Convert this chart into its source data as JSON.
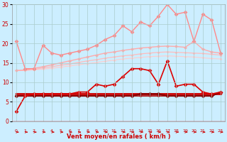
{
  "xlabel": "Vent moyen/en rafales ( km/h )",
  "xlim": [
    -0.5,
    23.5
  ],
  "ylim": [
    0,
    30
  ],
  "yticks": [
    0,
    5,
    10,
    15,
    20,
    25,
    30
  ],
  "xticks": [
    0,
    1,
    2,
    3,
    4,
    5,
    6,
    7,
    8,
    9,
    10,
    11,
    12,
    13,
    14,
    15,
    16,
    17,
    18,
    19,
    20,
    21,
    22,
    23
  ],
  "bg_color": "#cceeff",
  "grid_color": "#aacccc",
  "pink_jagged": {
    "y": [
      20.5,
      13.5,
      13.5,
      19.5,
      17.5,
      17.0,
      17.5,
      18.0,
      18.5,
      19.5,
      21.0,
      22.0,
      24.5,
      23.0,
      25.5,
      24.5,
      27.0,
      30.0,
      27.5,
      28.0,
      20.5,
      27.5,
      26.0,
      17.5
    ],
    "color": "#ff8888",
    "lw": 1.0,
    "ms": 3.0
  },
  "pink_smooth1": {
    "y": [
      13.0,
      13.2,
      13.6,
      14.0,
      14.5,
      15.0,
      15.5,
      16.0,
      16.5,
      17.0,
      17.5,
      17.8,
      18.2,
      18.5,
      18.8,
      19.0,
      19.2,
      19.3,
      19.2,
      19.0,
      20.5,
      18.5,
      17.8,
      17.5
    ],
    "color": "#ffaaaa",
    "lw": 1.0,
    "ms": 2.5
  },
  "pink_smooth2": {
    "y": [
      13.0,
      13.1,
      13.3,
      13.7,
      14.0,
      14.4,
      14.7,
      15.1,
      15.5,
      15.8,
      16.2,
      16.5,
      16.8,
      17.0,
      17.3,
      17.5,
      17.7,
      17.8,
      17.7,
      17.6,
      17.5,
      17.4,
      17.2,
      17.0
    ],
    "color": "#ffbbbb",
    "lw": 0.9,
    "ms": 2.0
  },
  "pink_smooth3": {
    "y": [
      13.0,
      13.05,
      13.2,
      13.4,
      13.6,
      13.9,
      14.2,
      14.5,
      14.8,
      15.1,
      15.4,
      15.7,
      16.0,
      16.2,
      16.4,
      16.6,
      16.7,
      16.8,
      16.7,
      16.6,
      16.5,
      16.3,
      16.1,
      16.0
    ],
    "color": "#ffcccc",
    "lw": 0.8,
    "ms": 2.0
  },
  "red_jagged": {
    "y": [
      2.5,
      6.5,
      7.0,
      7.0,
      7.0,
      7.0,
      7.0,
      7.5,
      7.5,
      9.5,
      9.0,
      9.5,
      11.5,
      13.5,
      13.5,
      13.0,
      9.5,
      15.5,
      9.0,
      9.5,
      9.5,
      7.5,
      7.0,
      7.5
    ],
    "color": "#dd0000",
    "lw": 1.2,
    "ms": 3.0
  },
  "red_flat1": {
    "y": [
      7.0,
      7.0,
      7.0,
      7.0,
      7.0,
      7.0,
      7.0,
      7.0,
      7.0,
      7.0,
      7.0,
      7.0,
      7.0,
      7.0,
      7.0,
      7.0,
      7.0,
      7.0,
      7.0,
      7.0,
      7.0,
      7.0,
      7.0,
      7.0
    ],
    "color": "#cc0000",
    "lw": 2.0,
    "ms": 2.0
  },
  "red_flat2": {
    "y": [
      6.5,
      6.5,
      6.5,
      6.5,
      6.5,
      6.5,
      6.5,
      6.5,
      6.5,
      6.5,
      6.5,
      6.5,
      6.5,
      6.5,
      6.5,
      6.5,
      6.5,
      6.5,
      6.5,
      6.5,
      6.5,
      6.5,
      6.5,
      7.5
    ],
    "color": "#aa0000",
    "lw": 1.2,
    "ms": 2.0
  },
  "dark_jagged": {
    "y": [
      6.5,
      6.5,
      6.5,
      6.5,
      6.5,
      6.5,
      6.5,
      6.5,
      6.5,
      6.5,
      6.5,
      6.5,
      6.5,
      6.5,
      7.0,
      7.0,
      7.0,
      6.5,
      6.5,
      6.5,
      6.5,
      6.5,
      6.5,
      7.5
    ],
    "color": "#880000",
    "lw": 1.5,
    "ms": 3.0
  }
}
